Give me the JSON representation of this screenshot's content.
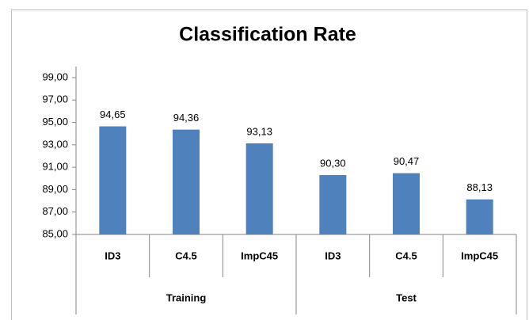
{
  "chart_data": {
    "type": "bar",
    "title": "Classification Rate",
    "categories": [
      "ID3",
      "C4.5",
      "ImpC45",
      "ID3",
      "C4.5",
      "ImpC45"
    ],
    "groups": [
      "Training",
      "Test"
    ],
    "values": [
      94.65,
      94.36,
      93.13,
      90.3,
      90.47,
      88.13
    ],
    "value_labels": [
      "94,65",
      "94,36",
      "93,13",
      "90,30",
      "90,47",
      "88,13"
    ],
    "color": "#4f81bd",
    "ylim": [
      85,
      99
    ],
    "yticks": [
      {
        "value": 85,
        "label": "85,00"
      },
      {
        "value": 87,
        "label": "87,00"
      },
      {
        "value": 89,
        "label": "89,00"
      },
      {
        "value": 91,
        "label": "91,00"
      },
      {
        "value": 93,
        "label": "93,00"
      },
      {
        "value": 95,
        "label": "95,00"
      },
      {
        "value": 97,
        "label": "97,00"
      },
      {
        "value": 99,
        "label": "99,00"
      }
    ],
    "grid": false
  }
}
